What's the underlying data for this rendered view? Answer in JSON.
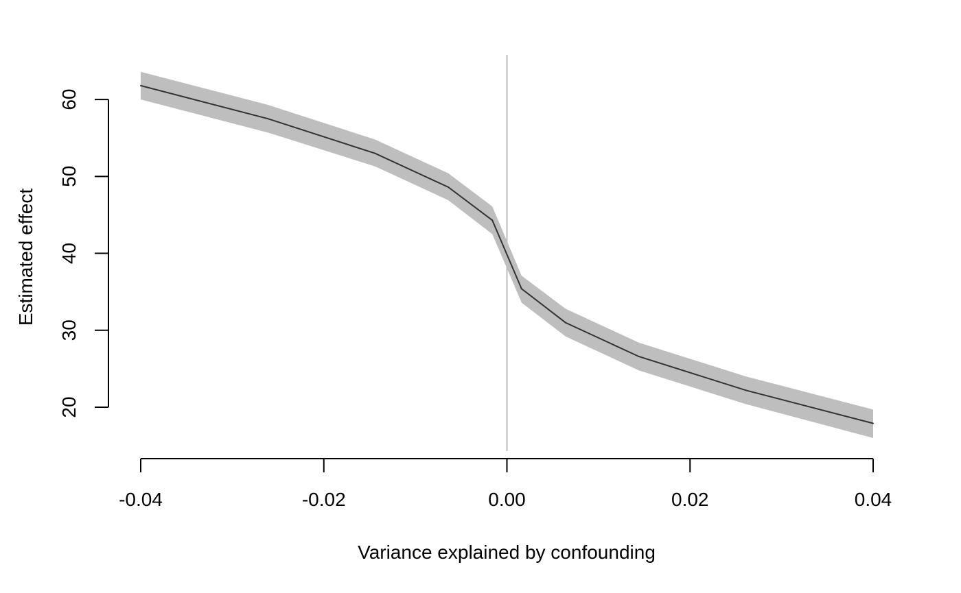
{
  "chart_data": {
    "type": "line",
    "title": "",
    "xlabel": "Variance explained by confounding",
    "ylabel": "Estimated effect",
    "xlim": [
      -0.04,
      0.04
    ],
    "ylim": [
      14.3,
      65.8
    ],
    "x_ticks": [
      -0.04,
      -0.02,
      0.0,
      0.02,
      0.04
    ],
    "x_tick_labels": [
      "-0.04",
      "-0.02",
      "0.00",
      "0.02",
      "0.04"
    ],
    "y_ticks": [
      20,
      30,
      40,
      50,
      60
    ],
    "y_tick_labels": [
      "20",
      "30",
      "40",
      "50",
      "60"
    ],
    "reference_line_x": 0.0,
    "grid": false,
    "colors": {
      "line": "#333333",
      "band": "#bebebe",
      "reference": "#bebebe",
      "axis": "#000000"
    },
    "series": [
      {
        "x": [
          -0.04,
          -0.0261,
          -0.0144,
          -0.0064,
          -0.0016,
          0.0016,
          0.0064,
          0.0144,
          0.0261,
          0.04
        ],
        "y": [
          61.8,
          57.5,
          53.0,
          48.6,
          44.3,
          35.4,
          31.0,
          26.6,
          22.2,
          17.9
        ],
        "lower": [
          60.0,
          55.7,
          51.3,
          46.9,
          42.5,
          33.6,
          29.2,
          24.8,
          20.4,
          16.0
        ],
        "upper": [
          63.6,
          59.3,
          54.8,
          50.4,
          46.1,
          37.1,
          32.8,
          28.4,
          24.0,
          19.7
        ]
      }
    ]
  }
}
